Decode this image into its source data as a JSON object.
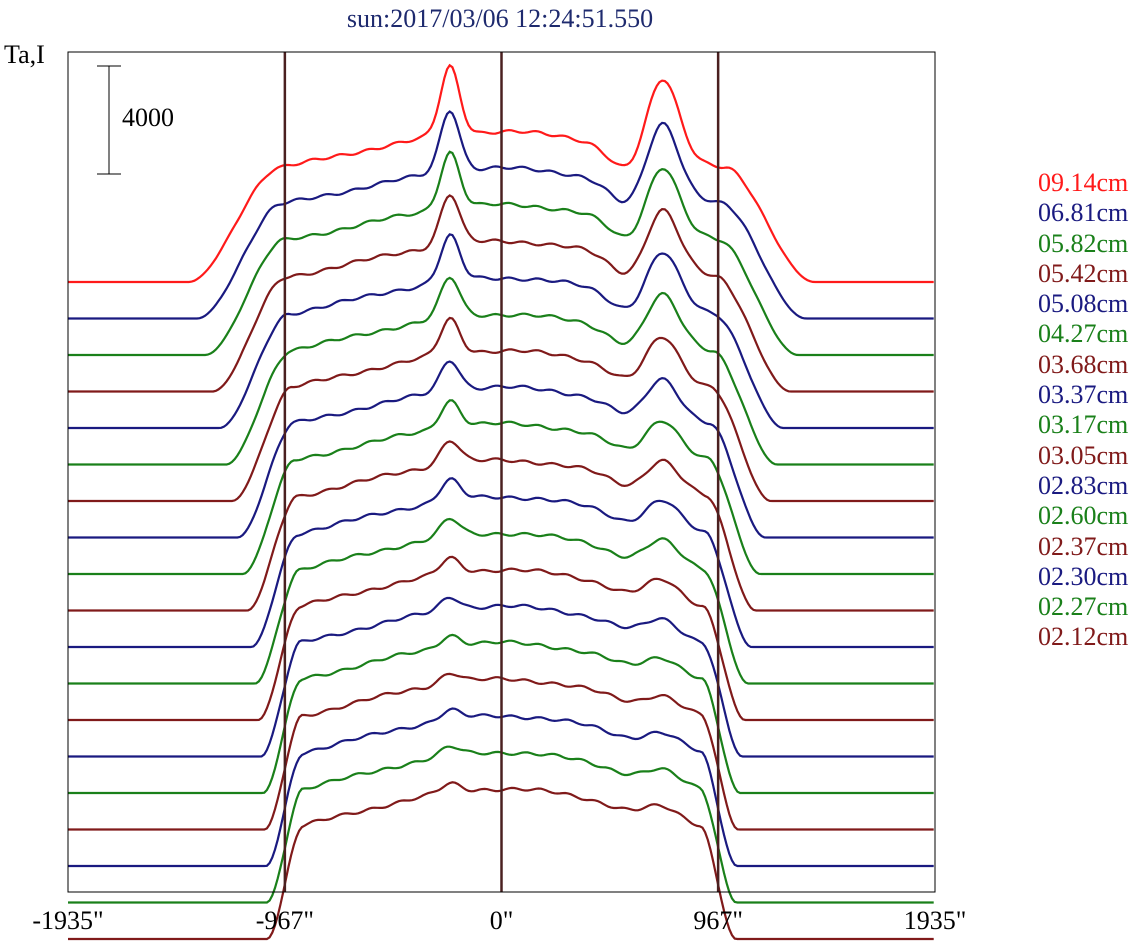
{
  "title": "sun:2017/03/06 12:24:51.550",
  "ylabel": "Ta,I",
  "scale_bar_label": "4000",
  "colors": {
    "red": "#ff1a1a",
    "blue": "#1a1a80",
    "green": "#1a801a",
    "darkred": "#801a1a",
    "limb": "#4a2020",
    "axes": "#000000"
  },
  "chart_data": {
    "type": "line",
    "title": "sun:2017/03/06 12:24:51.550",
    "ylabel": "Ta,I",
    "xlabel": "",
    "xlim": [
      -1935,
      1935
    ],
    "x_ticks": [
      "-1935\"",
      "-967\"",
      "0\"",
      "967\"",
      "1935\""
    ],
    "x_tick_values": [
      -1935,
      -967,
      0,
      967,
      1935
    ],
    "reference_lines_x": [
      -967,
      0,
      967
    ],
    "scale_bar": 4000,
    "legend_placement": "right",
    "grid": false,
    "series": [
      {
        "name": "09.14cm",
        "color": "red"
      },
      {
        "name": "06.81cm",
        "color": "blue"
      },
      {
        "name": "05.82cm",
        "color": "green"
      },
      {
        "name": "05.42cm",
        "color": "darkred"
      },
      {
        "name": "05.08cm",
        "color": "blue"
      },
      {
        "name": "04.27cm",
        "color": "green"
      },
      {
        "name": "03.68cm",
        "color": "darkred"
      },
      {
        "name": "03.37cm",
        "color": "blue"
      },
      {
        "name": "03.17cm",
        "color": "green"
      },
      {
        "name": "03.05cm",
        "color": "darkred"
      },
      {
        "name": "02.83cm",
        "color": "blue"
      },
      {
        "name": "02.60cm",
        "color": "green"
      },
      {
        "name": "02.37cm",
        "color": "darkred"
      },
      {
        "name": "02.30cm",
        "color": "blue"
      },
      {
        "name": "02.27cm",
        "color": "green"
      },
      {
        "name": "02.12cm",
        "color": "darkred"
      },
      {
        "color": "blue"
      },
      {
        "color": "green"
      },
      {
        "color": "darkred"
      }
    ]
  }
}
